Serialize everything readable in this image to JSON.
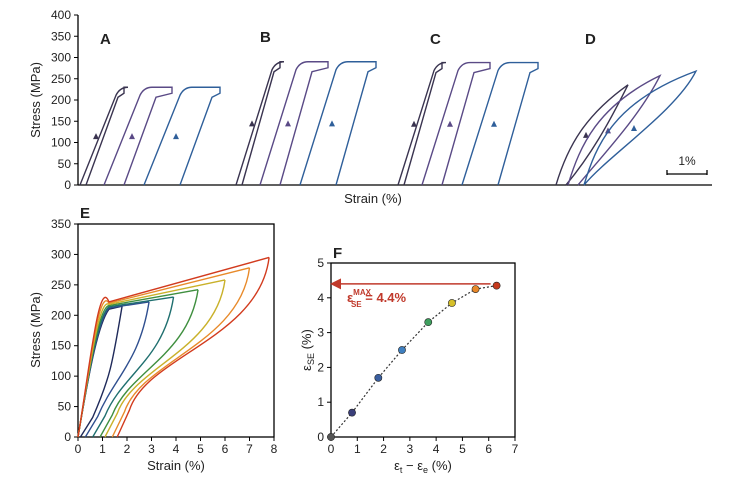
{
  "chart_data": [
    {
      "panel": "top",
      "type": "line",
      "ylabel": "Stress (MPa)",
      "xlabel": "Strain (%)",
      "yticks": [
        "0",
        "50",
        "100",
        "150",
        "200",
        "250",
        "300",
        "350",
        "400"
      ],
      "ylim": [
        0,
        400
      ],
      "scale_bar_label": "1%",
      "subpanels": [
        {
          "label": "A",
          "peak_stress": 230,
          "max_strain_pct": 3.5
        },
        {
          "label": "B",
          "peak_stress": 290,
          "max_strain_pct": 3.5
        },
        {
          "label": "C",
          "peak_stress": 288,
          "max_strain_pct": 3.5
        },
        {
          "label": "D",
          "peak_stress": 268,
          "max_strain_pct": 3.5
        }
      ],
      "series_colors": [
        "#3a3450",
        "#5a4a86",
        "#2f5f9a",
        "#4a90cf"
      ]
    },
    {
      "panel": "E",
      "type": "line",
      "label": "E",
      "xlabel": "Strain (%)",
      "ylabel": "Stress (MPa)",
      "xlim": [
        0,
        8
      ],
      "ylim": [
        0,
        350
      ],
      "xticks": [
        "0",
        "1",
        "2",
        "3",
        "4",
        "5",
        "6",
        "7",
        "8"
      ],
      "yticks": [
        "0",
        "50",
        "100",
        "150",
        "200",
        "250",
        "300",
        "350"
      ],
      "cycles": [
        {
          "max_strain": 1.8,
          "max_stress": 215,
          "residual_strain": 0.1,
          "color": "#1f2a5a"
        },
        {
          "max_strain": 2.9,
          "max_stress": 222,
          "residual_strain": 0.3,
          "color": "#2f4f8f"
        },
        {
          "max_strain": 3.9,
          "max_stress": 230,
          "residual_strain": 0.6,
          "color": "#1f6f6f"
        },
        {
          "max_strain": 4.9,
          "max_stress": 242,
          "residual_strain": 0.9,
          "color": "#3f8f3f"
        },
        {
          "max_strain": 6.0,
          "max_stress": 258,
          "residual_strain": 1.1,
          "color": "#c9b12a"
        },
        {
          "max_strain": 7.0,
          "max_stress": 278,
          "residual_strain": 1.4,
          "color": "#e88a2a"
        },
        {
          "max_strain": 7.8,
          "max_stress": 295,
          "residual_strain": 1.6,
          "color": "#d23b1e"
        }
      ]
    },
    {
      "panel": "F",
      "type": "scatter",
      "label": "F",
      "xlabel_main": "ε",
      "xlabel_sub1": "t",
      "xlabel_mid": " − ε",
      "xlabel_sub2": "e",
      "xlabel_unit": " (%)",
      "ylabel_main": "ε",
      "ylabel_sub": "SE",
      "ylabel_unit": " (%)",
      "xlim": [
        0,
        7
      ],
      "ylim": [
        0,
        5
      ],
      "xticks": [
        "0",
        "1",
        "2",
        "3",
        "4",
        "5",
        "6",
        "7"
      ],
      "yticks": [
        "0",
        "1",
        "2",
        "3",
        "4",
        "5"
      ],
      "points": [
        {
          "x": 0.0,
          "y": 0.0,
          "color": "#555555"
        },
        {
          "x": 0.8,
          "y": 0.7,
          "color": "#3a3f7a"
        },
        {
          "x": 1.8,
          "y": 1.7,
          "color": "#3a5fa0"
        },
        {
          "x": 2.7,
          "y": 2.5,
          "color": "#3f7fbf"
        },
        {
          "x": 3.7,
          "y": 3.3,
          "color": "#3f9f5f"
        },
        {
          "x": 4.6,
          "y": 3.85,
          "color": "#d6c02a"
        },
        {
          "x": 5.5,
          "y": 4.25,
          "color": "#e8882a"
        },
        {
          "x": 6.3,
          "y": 4.35,
          "color": "#c63a1e"
        }
      ],
      "annotation": {
        "main": "ε",
        "sub": "SE",
        "sup": "MAX",
        "value_text": " = 4.4%",
        "value": 4.4,
        "color": "#c0392b"
      }
    }
  ]
}
